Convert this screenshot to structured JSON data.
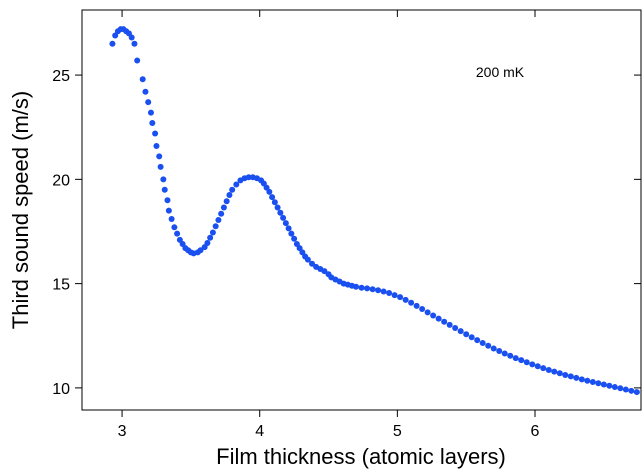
{
  "chart_data": {
    "type": "scatter",
    "xlabel": "Film thickness (atomic layers)",
    "ylabel": "Third sound speed (m/s)",
    "annotation": "200 mK",
    "xlim": [
      2.709,
      6.77
    ],
    "ylim": [
      8.94,
      28.12
    ],
    "xticks": [
      3,
      4,
      5,
      6
    ],
    "yticks": [
      10,
      15,
      20,
      25
    ],
    "grid": false,
    "series": [
      {
        "color": "#1a4ff0",
        "x": [
          2.93,
          2.95,
          2.97,
          2.99,
          3.01,
          3.03,
          3.05,
          3.07,
          3.09,
          3.11,
          3.15,
          3.17,
          3.19,
          3.21,
          3.22,
          3.24,
          3.25,
          3.27,
          3.28,
          3.3,
          3.31,
          3.33,
          3.34,
          3.36,
          3.38,
          3.4,
          3.42,
          3.44,
          3.46,
          3.48,
          3.5,
          3.52,
          3.55,
          3.57,
          3.6,
          3.62,
          3.64,
          3.66,
          3.68,
          3.7,
          3.72,
          3.74,
          3.76,
          3.78,
          3.8,
          3.83,
          3.86,
          3.89,
          3.92,
          3.95,
          3.98,
          4.01,
          4.03,
          4.05,
          4.07,
          4.09,
          4.11,
          4.13,
          4.15,
          4.17,
          4.19,
          4.21,
          4.23,
          4.25,
          4.27,
          4.29,
          4.31,
          4.33,
          4.35,
          4.38,
          4.41,
          4.44,
          4.47,
          4.5,
          4.52,
          4.55,
          4.58,
          4.61,
          4.64,
          4.67,
          4.7,
          4.74,
          4.78,
          4.82,
          4.86,
          4.9,
          4.94,
          4.98,
          5.02,
          5.06,
          5.1,
          5.14,
          5.18,
          5.22,
          5.26,
          5.3,
          5.34,
          5.38,
          5.42,
          5.46,
          5.5,
          5.54,
          5.58,
          5.62,
          5.66,
          5.7,
          5.74,
          5.78,
          5.82,
          5.86,
          5.9,
          5.94,
          5.98,
          6.02,
          6.06,
          6.1,
          6.14,
          6.18,
          6.22,
          6.26,
          6.3,
          6.34,
          6.38,
          6.42,
          6.46,
          6.5,
          6.54,
          6.58,
          6.62,
          6.66,
          6.7,
          6.74
        ],
        "values": [
          26.5,
          26.9,
          27.1,
          27.2,
          27.2,
          27.1,
          27.0,
          26.8,
          26.5,
          25.7,
          24.8,
          24.2,
          23.7,
          23.2,
          22.7,
          22.2,
          21.6,
          21.1,
          20.6,
          20.0,
          19.5,
          19.0,
          18.5,
          18.1,
          17.7,
          17.4,
          17.1,
          16.9,
          16.7,
          16.6,
          16.5,
          16.45,
          16.5,
          16.6,
          16.75,
          16.95,
          17.2,
          17.45,
          17.75,
          18.05,
          18.35,
          18.65,
          18.95,
          19.25,
          19.5,
          19.75,
          19.95,
          20.05,
          20.1,
          20.1,
          20.05,
          19.95,
          19.8,
          19.6,
          19.4,
          19.15,
          18.9,
          18.65,
          18.4,
          18.15,
          17.9,
          17.65,
          17.4,
          17.15,
          16.9,
          16.7,
          16.5,
          16.3,
          16.15,
          15.95,
          15.8,
          15.7,
          15.6,
          15.45,
          15.3,
          15.2,
          15.1,
          15.0,
          14.95,
          14.9,
          14.85,
          14.8,
          14.77,
          14.73,
          14.68,
          14.62,
          14.55,
          14.45,
          14.35,
          14.22,
          14.08,
          13.93,
          13.78,
          13.62,
          13.47,
          13.32,
          13.17,
          13.02,
          12.87,
          12.72,
          12.57,
          12.43,
          12.29,
          12.15,
          12.02,
          11.89,
          11.77,
          11.65,
          11.54,
          11.43,
          11.33,
          11.23,
          11.13,
          11.04,
          10.95,
          10.86,
          10.78,
          10.7,
          10.62,
          10.55,
          10.48,
          10.41,
          10.34,
          10.28,
          10.22,
          10.16,
          10.1,
          10.04,
          9.98,
          9.92,
          9.86,
          9.8
        ]
      }
    ]
  }
}
